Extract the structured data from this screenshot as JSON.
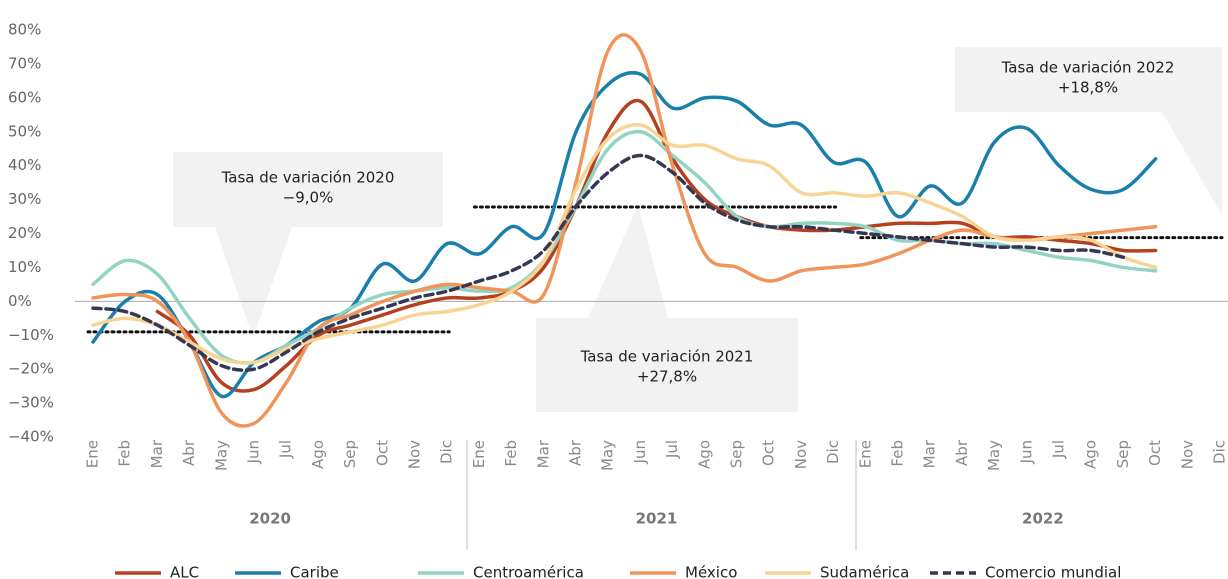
{
  "chart_data": {
    "type": "line",
    "categories": [
      "Ene",
      "Feb",
      "Mar",
      "Abr",
      "May",
      "Jun",
      "Jul",
      "Ago",
      "Sep",
      "Oct",
      "Nov",
      "Dic",
      "Ene",
      "Feb",
      "Mar",
      "Abr",
      "May",
      "Jun",
      "Jul",
      "Ago",
      "Sep",
      "Oct",
      "Nov",
      "Dic",
      "Ene",
      "Feb",
      "Mar",
      "Abr",
      "May",
      "Jun",
      "Jul",
      "Ago",
      "Sep",
      "Oct",
      "Nov",
      "Dic"
    ],
    "year_groups": [
      "2020",
      "2021",
      "2022"
    ],
    "ylim": [
      -40,
      80
    ],
    "yticks": [
      {
        "value": -40,
        "label": "−40%"
      },
      {
        "value": -30,
        "label": "−30%"
      },
      {
        "value": -20,
        "label": "−20%"
      },
      {
        "value": -10,
        "label": "−10%"
      },
      {
        "value": 0,
        "label": "0%"
      },
      {
        "value": 10,
        "label": "10%"
      },
      {
        "value": 20,
        "label": "20%"
      },
      {
        "value": 30,
        "label": "30%"
      },
      {
        "value": 40,
        "label": "40%"
      },
      {
        "value": 50,
        "label": "50%"
      },
      {
        "value": 60,
        "label": "60%"
      },
      {
        "value": 70,
        "label": "70%"
      },
      {
        "value": 80,
        "label": "80%"
      }
    ],
    "legend": "bottom",
    "series": [
      {
        "name": "ALC",
        "color": "#b5401f",
        "dash": false,
        "values": [
          null,
          null,
          -3,
          -10,
          -24,
          -26,
          -19,
          -10,
          -7,
          -4,
          -1,
          1,
          1,
          3,
          10,
          28,
          50,
          59,
          42,
          30,
          25,
          22,
          21,
          21,
          22,
          23,
          23,
          23,
          19,
          19,
          18,
          17,
          15,
          15,
          null,
          null
        ]
      },
      {
        "name": "Caribe",
        "color": "#1a7fab",
        "dash": false,
        "values": [
          -12,
          0,
          2,
          -12,
          -28,
          -18,
          -13,
          -6,
          -2,
          11,
          6,
          17,
          14,
          22,
          20,
          50,
          64,
          67,
          57,
          60,
          59,
          52,
          52,
          41,
          41,
          25,
          34,
          29,
          47,
          51,
          40,
          33,
          33,
          42,
          null,
          null
        ]
      },
      {
        "name": "Centroamérica",
        "color": "#93d3c3",
        "dash": false,
        "values": [
          5,
          12,
          8,
          -5,
          -16,
          -18,
          -13,
          -8,
          -2,
          2,
          3,
          4,
          3,
          4,
          12,
          28,
          45,
          50,
          43,
          35,
          25,
          22,
          23,
          23,
          22,
          18,
          18,
          17,
          17,
          15,
          13,
          12,
          10,
          9,
          null,
          null
        ]
      },
      {
        "name": "México",
        "color": "#f0945a",
        "dash": false,
        "values": [
          1,
          2,
          0,
          -12,
          -33,
          -36,
          -24,
          -8,
          -4,
          0,
          3,
          5,
          4,
          3,
          2,
          35,
          74,
          74,
          40,
          14,
          10,
          6,
          9,
          10,
          11,
          14,
          18,
          21,
          19,
          18,
          19,
          20,
          21,
          22,
          null,
          null
        ]
      },
      {
        "name": "Sudamérica",
        "color": "#f8d494",
        "dash": false,
        "values": [
          -7,
          -5,
          -7,
          -12,
          -17,
          -18,
          -14,
          -11,
          -9,
          -7,
          -4,
          -3,
          -1,
          3,
          12,
          33,
          48,
          52,
          46,
          46,
          42,
          40,
          32,
          32,
          31,
          32,
          29,
          25,
          19,
          18,
          19,
          18,
          13,
          10,
          null,
          null
        ]
      },
      {
        "name": "Comercio mundial",
        "color": "#363853",
        "dash": true,
        "values": [
          -2,
          -3,
          -7,
          -13,
          -19,
          -20,
          -15,
          -9,
          -5,
          -2,
          1,
          3,
          6,
          9,
          15,
          28,
          38,
          43,
          38,
          29,
          24,
          22,
          22,
          21,
          20,
          19,
          18,
          17,
          16,
          16,
          15,
          15,
          13,
          null,
          null,
          null
        ]
      }
    ],
    "annotations": [
      {
        "text": [
          "Tasa de variación 2020",
          "−9,0%"
        ],
        "value": -9.0
      },
      {
        "text": [
          "Tasa de variación 2021",
          "+27,8%"
        ],
        "value": 27.8
      },
      {
        "text": [
          "Tasa de variación 2022",
          "+18,8%"
        ],
        "value": 18.8
      }
    ]
  }
}
